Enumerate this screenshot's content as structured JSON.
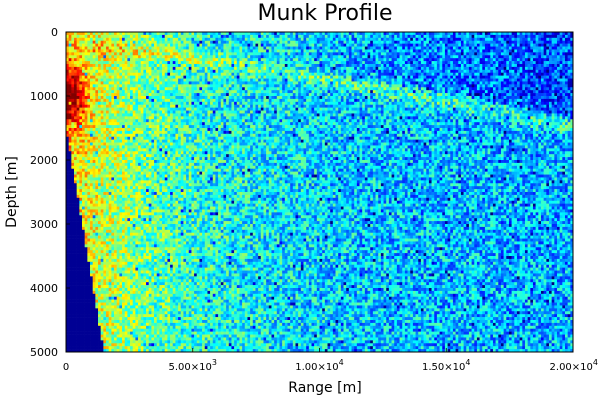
{
  "chart_data": {
    "type": "heatmap",
    "title": "Munk Profile",
    "xlabel": "Range [m]",
    "ylabel": "Depth [m]",
    "xlim": [
      0,
      20000
    ],
    "ylim": [
      5000,
      0
    ],
    "x_ticks": [
      {
        "value": 0,
        "label": "0"
      },
      {
        "value": 5000,
        "mant": "5.00×10",
        "exp": "3"
      },
      {
        "value": 10000,
        "mant": "1.00×10",
        "exp": "4"
      },
      {
        "value": 15000,
        "mant": "1.50×10",
        "exp": "4"
      },
      {
        "value": 20000,
        "mant": "2.00×10",
        "exp": "4"
      }
    ],
    "y_ticks": [
      {
        "value": 0,
        "label": "0"
      },
      {
        "value": 1000,
        "label": "1000"
      },
      {
        "value": 2000,
        "label": "2000"
      },
      {
        "value": 3000,
        "label": "3000"
      },
      {
        "value": 4000,
        "label": "4000"
      },
      {
        "value": 5000,
        "label": "5000"
      }
    ],
    "grid": true,
    "legend": "none",
    "colormap": "jet",
    "description_of_field": {
      "source_range_m": 0,
      "peak_depth_m": 1000,
      "upper_caustic_depth_at_20km_m": 1500,
      "shadow_zone_edge": [
        {
          "range_m": 0,
          "depth_m": 1500
        },
        {
          "range_m": 1500,
          "depth_m": 5000
        }
      ]
    }
  }
}
